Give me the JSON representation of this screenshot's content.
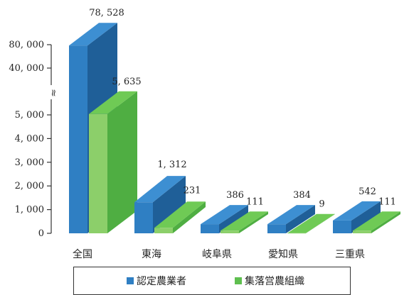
{
  "chart_data": {
    "type": "bar",
    "categories": [
      "全国",
      "東海",
      "岐阜県",
      "愛知県",
      "三重県"
    ],
    "series": [
      {
        "name": "認定農業者",
        "values": [
          78528,
          1312,
          386,
          384,
          542
        ],
        "labels": [
          "78, 528",
          "1, 312",
          "386",
          "384",
          "542"
        ],
        "color": "#2f7fc3"
      },
      {
        "name": "集落営農組織",
        "values": [
          5635,
          231,
          111,
          9,
          111
        ],
        "labels": [
          "5, 635",
          "231",
          "111",
          "9",
          "111"
        ],
        "color": "#5fbf4f"
      }
    ],
    "y_ticks_lower": [
      "0",
      "1, 000",
      "2, 000",
      "3, 000",
      "4, 000",
      "5, 000"
    ],
    "y_ticks_upper": [
      "40, 000",
      "80, 000"
    ],
    "axis_break_mark": "≈",
    "broken_axis": true,
    "legend_position": "bottom",
    "grid": false
  },
  "legend": {
    "items": [
      "認定農業者",
      "集落営農組織"
    ]
  }
}
